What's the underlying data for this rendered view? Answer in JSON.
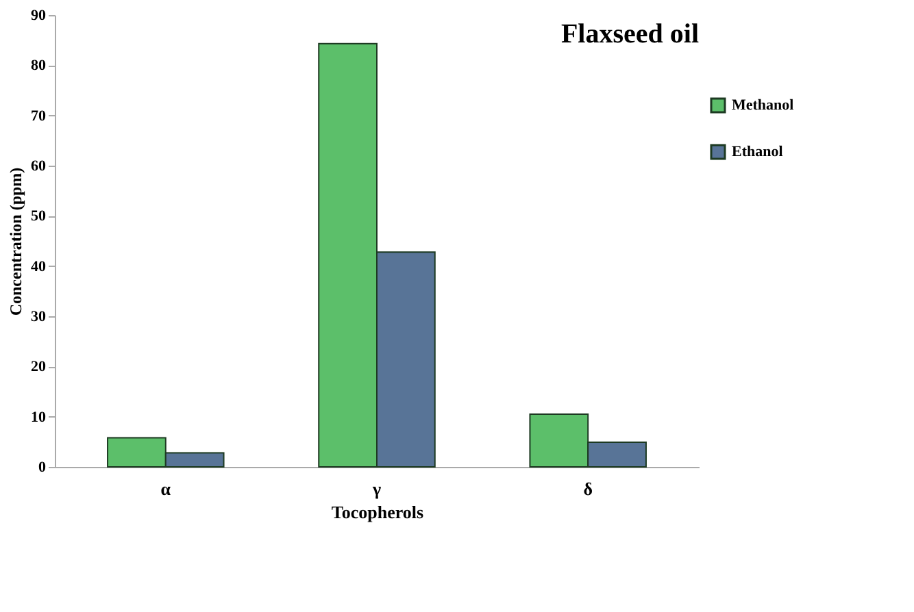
{
  "chart_data": {
    "type": "bar",
    "title": "Flaxseed oil",
    "xlabel": "Tocopherols",
    "ylabel": "Concentration (ppm)",
    "categories": [
      "α",
      "γ",
      "δ"
    ],
    "series": [
      {
        "name": "Methanol",
        "color": "#5cbf6a",
        "values": [
          5.8,
          84.3,
          10.5
        ]
      },
      {
        "name": "Ethanol",
        "color": "#587497",
        "values": [
          2.8,
          42.8,
          4.9
        ]
      }
    ],
    "ylim": [
      0,
      90
    ],
    "yticks": [
      0,
      10,
      20,
      30,
      40,
      50,
      60,
      70,
      80,
      90
    ],
    "grid": false,
    "legend": "right"
  }
}
